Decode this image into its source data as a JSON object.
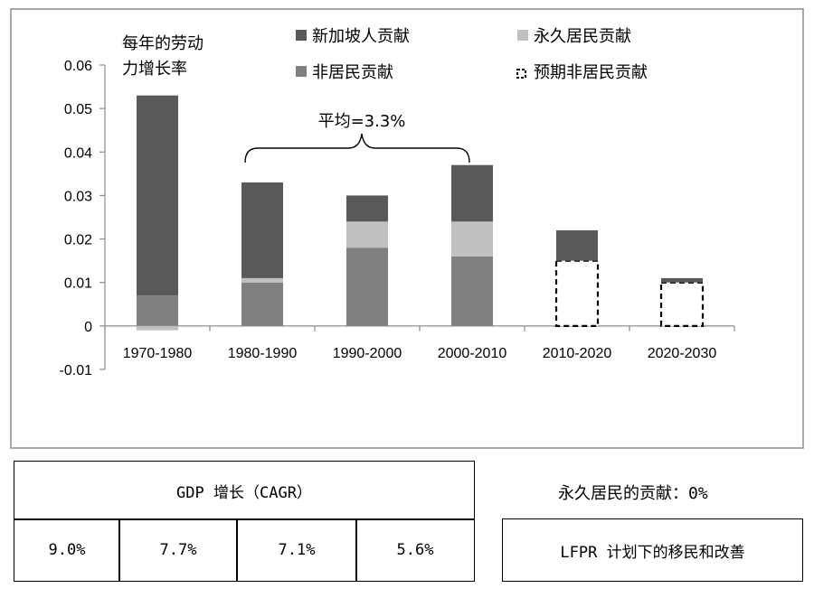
{
  "chart_data": {
    "type": "bar",
    "stacked": true,
    "categories": [
      "1970-1980",
      "1980-1990",
      "1990-2000",
      "2000-2010",
      "2010-2020",
      "2020-2030"
    ],
    "series": [
      {
        "name": "非居民贡献",
        "color": "#808080",
        "values": [
          0.007,
          0.01,
          0.018,
          0.016,
          null,
          null
        ]
      },
      {
        "name": "永久居民贡献",
        "color": "#c0c0c0",
        "values": [
          -0.001,
          0.001,
          0.006,
          0.008,
          0,
          0
        ]
      },
      {
        "name": "新加坡人贡献",
        "color": "#595959",
        "values": [
          0.046,
          0.022,
          0.006,
          0.013,
          0.007,
          0.001
        ]
      },
      {
        "name": "预期非居民贡献",
        "style": "dashed-outline",
        "values": [
          null,
          null,
          null,
          null,
          0.015,
          0.01
        ]
      }
    ],
    "ylabel": "每年的劳动力增长率",
    "ylabel_lines": [
      "每年的劳动",
      "力增长率"
    ],
    "ylim": [
      -0.01,
      0.06
    ],
    "yticks": [
      "-0.01",
      "0",
      "0.01",
      "0.02",
      "0.03",
      "0.04",
      "0.05",
      "0.06"
    ],
    "ytick_values": [
      -0.01,
      0,
      0.01,
      0.02,
      0.03,
      0.04,
      0.05,
      0.06
    ],
    "legend_placement": "top",
    "annotation": "平均=3.3%",
    "annotation_span": [
      "1980-1990",
      "2000-2010"
    ]
  },
  "table": {
    "header": "GDP 增长（CAGR）",
    "values": [
      "9.0%",
      "7.7%",
      "7.1%",
      "5.6%"
    ]
  },
  "notes": {
    "pr_note": "永久居民的贡献：0%",
    "lfpr_box": "LFPR 计划下的移民和改善"
  }
}
